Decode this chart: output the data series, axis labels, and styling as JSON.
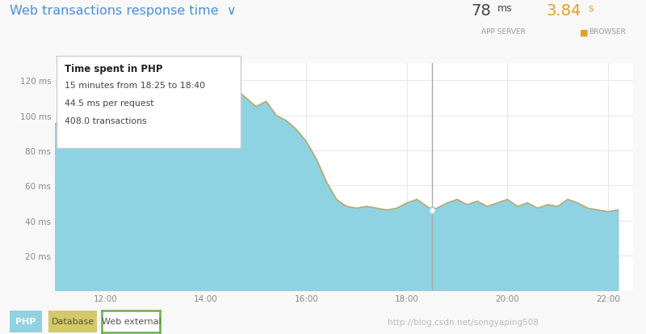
{
  "title": "Web transactions response time  ∨",
  "title_color": "#4a90d9",
  "bg_color": "#f8f8f8",
  "plot_bg_color": "#ffffff",
  "area_fill_color": "#8fd3e3",
  "line_color": "#b8a86e",
  "grid_color": "#e8e8e8",
  "ylim": [
    0,
    130
  ],
  "yticks": [
    0,
    20,
    40,
    60,
    80,
    100,
    120
  ],
  "ytick_labels": [
    "",
    "20 ms",
    "40 ms",
    "60 ms",
    "80 ms",
    "100 ms",
    "120 ms"
  ],
  "xtick_labels": [
    "12:00",
    "14:00",
    "16:00",
    "18:00",
    "20:00",
    "22:00"
  ],
  "app_server_val": "78",
  "app_server_unit": "ms",
  "browser_val": "3.84",
  "browser_unit": "s",
  "vertical_line_x": 18.5,
  "circle_marker_x": 18.5,
  "circle_marker_y": 46,
  "tooltip_title": "Time spent in PHP",
  "tooltip_line1": "15 minutes from 18:25 to 18:40",
  "tooltip_line2": "44.5 ms per request",
  "tooltip_line3": "408.0 transactions",
  "x_hours": [
    11.0,
    11.2,
    11.4,
    11.6,
    11.8,
    12.0,
    12.2,
    12.4,
    12.6,
    12.8,
    13.0,
    13.2,
    13.4,
    13.6,
    13.8,
    14.0,
    14.2,
    14.4,
    14.6,
    14.8,
    15.0,
    15.2,
    15.4,
    15.6,
    15.8,
    16.0,
    16.2,
    16.4,
    16.6,
    16.8,
    17.0,
    17.2,
    17.4,
    17.6,
    17.8,
    18.0,
    18.2,
    18.4,
    18.5,
    18.6,
    18.8,
    19.0,
    19.2,
    19.4,
    19.6,
    19.8,
    20.0,
    20.2,
    20.4,
    20.6,
    20.8,
    21.0,
    21.2,
    21.4,
    21.6,
    21.8,
    22.0,
    22.2
  ],
  "y": [
    95,
    98,
    92,
    100,
    97,
    96,
    100,
    105,
    108,
    104,
    110,
    112,
    108,
    115,
    118,
    122,
    120,
    118,
    115,
    110,
    105,
    108,
    100,
    97,
    92,
    85,
    75,
    62,
    52,
    48,
    47,
    48,
    47,
    46,
    47,
    50,
    52,
    48,
    46,
    47,
    50,
    52,
    49,
    51,
    48,
    50,
    52,
    48,
    50,
    47,
    49,
    48,
    52,
    50,
    47,
    46,
    45,
    46
  ],
  "xlim": [
    11.0,
    22.5
  ],
  "xtick_positions": [
    12,
    14,
    16,
    18,
    20,
    22
  ]
}
